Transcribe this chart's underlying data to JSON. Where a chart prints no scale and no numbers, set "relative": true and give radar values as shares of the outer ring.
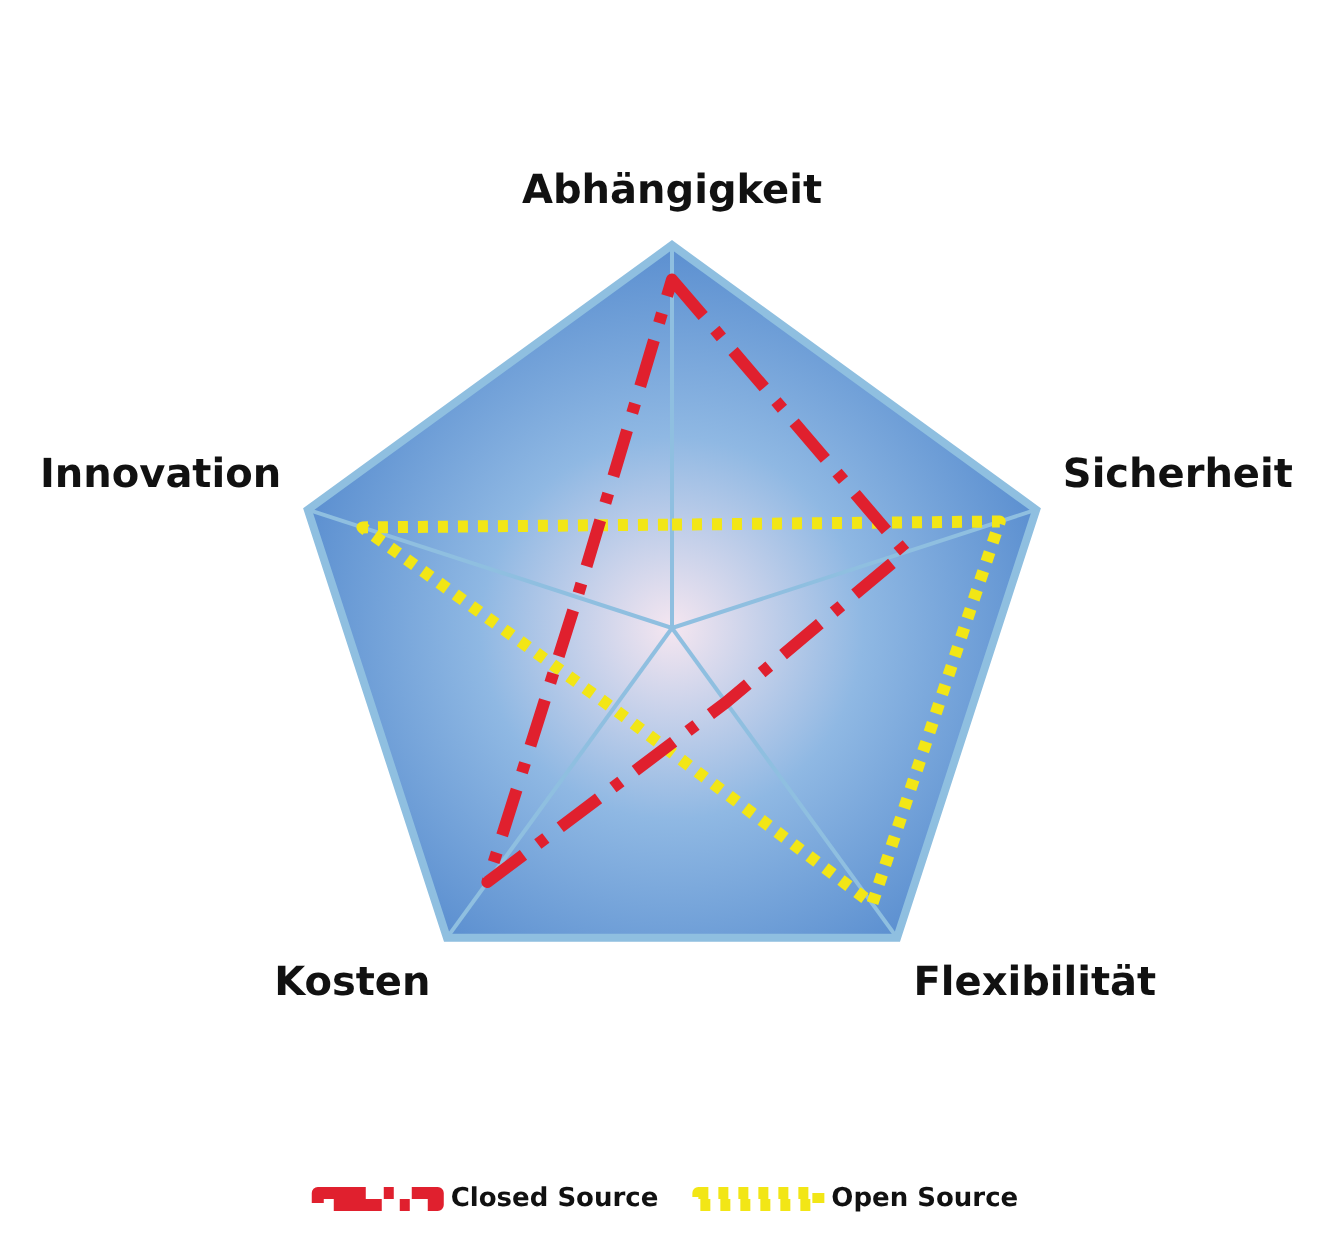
{
  "chart_data": {
    "type": "radar",
    "relative": true,
    "grid": true,
    "legend": "bottom",
    "marker": "none",
    "categories": [
      "Abhängigkeit",
      "Sicherheit",
      "Flexibilität",
      "Kosten",
      "Innovation"
    ],
    "series": [
      {
        "name": "Closed Source",
        "color": "#e0202e",
        "line_style": "dashdot",
        "values": [
          0.91,
          0.64,
          0.24,
          0.82,
          0.26
        ]
      },
      {
        "name": "Open Source",
        "color": "#f2e616",
        "line_style": "dotted",
        "values": [
          0.27,
          0.9,
          0.89,
          0.26,
          0.85
        ]
      }
    ]
  }
}
